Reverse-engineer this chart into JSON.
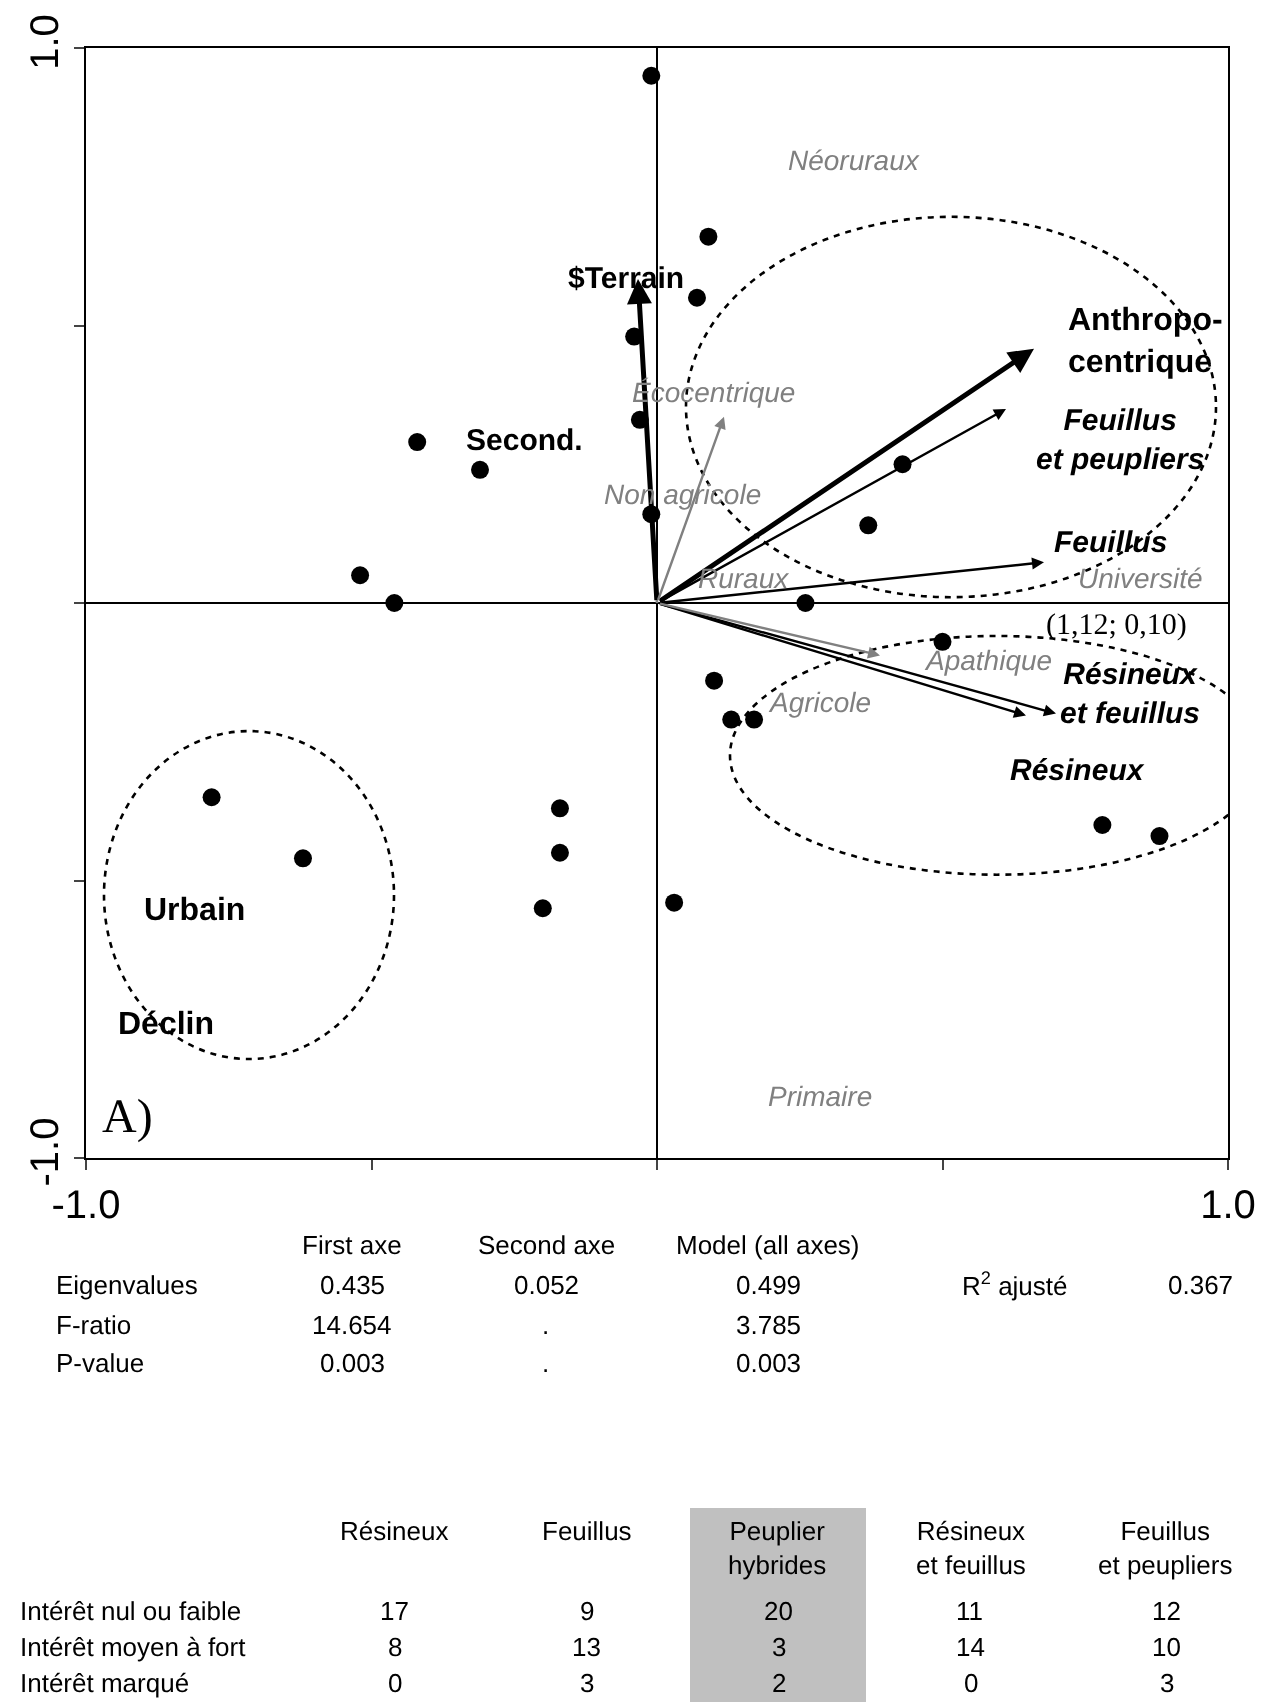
{
  "chart_data": {
    "type": "scatter",
    "xlim": [
      -1,
      1
    ],
    "ylim": [
      -1,
      1
    ],
    "xticks": [
      {
        "value": -1,
        "label": "-1.0"
      },
      {
        "value": -0.5,
        "label": null
      },
      {
        "value": 0,
        "label": null
      },
      {
        "value": 0.5,
        "label": null
      },
      {
        "value": 1,
        "label": "1.0"
      }
    ],
    "yticks": [
      {
        "value": -1,
        "label": "-1.0"
      },
      {
        "value": -0.5,
        "label": null
      },
      {
        "value": 0,
        "label": null
      },
      {
        "value": 0.5,
        "label": null
      },
      {
        "value": 1,
        "label": "1.0"
      }
    ],
    "series": [
      {
        "type": "scatter",
        "marker": "circle",
        "color": "#000000",
        "x": [
          -0.01,
          0.09,
          0.07,
          -0.04,
          -0.03,
          -0.42,
          -0.31,
          -0.01,
          -0.52,
          -0.46,
          0.43,
          0.37,
          0.26,
          0.5,
          0.1,
          0.13,
          0.17,
          0.78,
          0.88,
          0.03,
          -0.78,
          -0.62,
          -0.17,
          -0.17,
          -0.2
        ],
        "values": [
          0.95,
          0.66,
          0.55,
          0.48,
          0.33,
          0.29,
          0.24,
          0.16,
          0.05,
          0.0,
          0.25,
          0.14,
          0.0,
          -0.07,
          -0.14,
          -0.21,
          -0.21,
          -0.4,
          -0.42,
          -0.54,
          -0.35,
          -0.46,
          -0.37,
          -0.45,
          -0.55
        ]
      }
    ],
    "annotations": [
      "$Terrain",
      "Anthropo-\ncentrique",
      "Feuillus\net peupliers",
      "Feuillus",
      "Résineux\net feuillus",
      "Résineux",
      "Écocentrique",
      "Non agricole",
      "Apathique",
      "Second.",
      "Néoruraux",
      "Ruraux",
      "Université",
      "(1,12; 0,10)",
      "Agricole",
      "Primaire",
      "Urbain",
      "Déclin",
      "A)",
      "First axe",
      "Second axe",
      "Model (all axes)",
      "Eigenvalues",
      "0.435",
      "0.052",
      "0.499",
      "R$^{2}$ ajusté",
      "0.367",
      "F-ratio",
      "14.654",
      ".",
      "3.785",
      "P-value",
      "0.003",
      ".",
      "0.003",
      "Résineux",
      "Feuillus",
      "Peuplier\nhybrides",
      "Résineux\net feuillus",
      "Feuillus\net peupliers",
      "Intérêt nul ou faible",
      "17",
      "9",
      "20",
      "11",
      "12",
      "Intérêt moyen à fort",
      "8",
      "13",
      "3",
      "14",
      "10",
      "Intérêt marqué",
      "0",
      "3",
      "2",
      "0",
      "3"
    ]
  }
}
